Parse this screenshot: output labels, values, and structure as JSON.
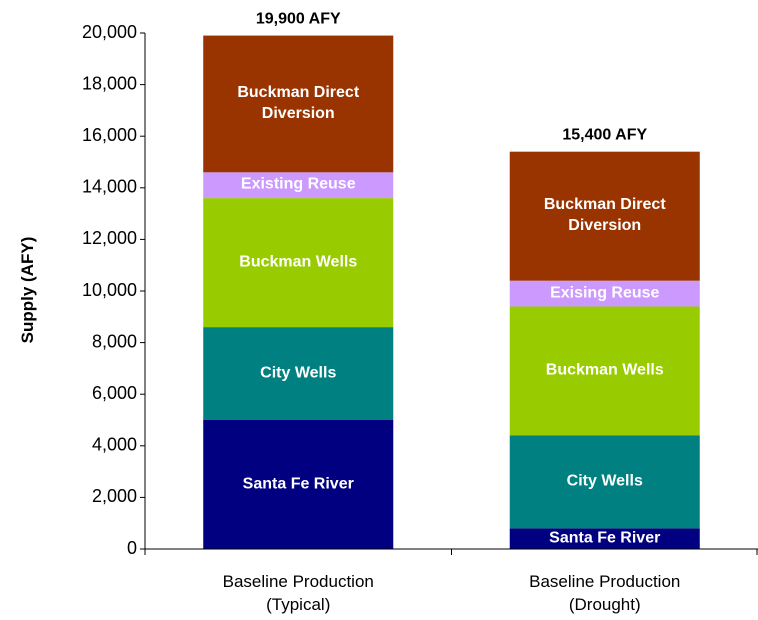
{
  "chart_data": {
    "type": "stacked_bar",
    "y_label": "Supply (AFY)",
    "categories": [
      "Baseline Production\n(Typical)",
      "Baseline Production\n(Drought)"
    ],
    "total_labels": [
      "19,900 AFY",
      "15,400 AFY"
    ],
    "series": [
      {
        "labels": [
          "Santa Fe River",
          "Santa Fe River"
        ],
        "color": "#000080",
        "values": [
          5000,
          800
        ]
      },
      {
        "labels": [
          "City Wells",
          "City Wells"
        ],
        "color": "#008080",
        "values": [
          3600,
          3600
        ]
      },
      {
        "labels": [
          "Buckman Wells",
          "Buckman Wells"
        ],
        "color": "#99cc00",
        "values": [
          5000,
          5000
        ]
      },
      {
        "labels": [
          "Existing Reuse",
          "Exising Reuse"
        ],
        "color": "#cc99ff",
        "values": [
          1000,
          1000
        ]
      },
      {
        "labels": [
          "Buckman Direct\nDiversion",
          "Buckman Direct\nDiversion"
        ],
        "color": "#993300",
        "values": [
          5300,
          5000
        ]
      }
    ],
    "ylim": [
      0,
      20000
    ],
    "yticks": [
      0,
      {
        "value": 2000,
        "label": "2,000"
      },
      {
        "value": 4000,
        "label": "4,000"
      },
      {
        "value": 6000,
        "label": "6,000"
      },
      {
        "value": 8000,
        "label": "8,000"
      },
      {
        "value": 10000,
        "label": "10,000"
      },
      {
        "value": 12000,
        "label": "12,000"
      },
      {
        "value": 14000,
        "label": "14,000"
      },
      {
        "value": 16000,
        "label": "16,000"
      },
      {
        "value": 18000,
        "label": "18,000"
      },
      {
        "value": 20000,
        "label": "20,000"
      }
    ],
    "grid": false
  }
}
